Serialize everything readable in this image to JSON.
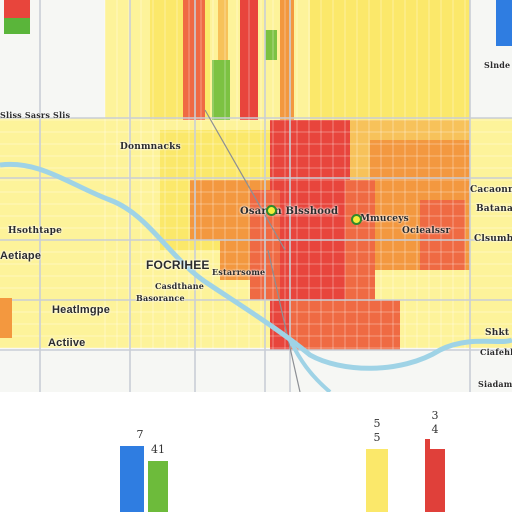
{
  "map": {
    "labels": {
      "district_north": "Donmnacks",
      "city_center": "Osarun Blsshood",
      "east_district": "Mmuceys",
      "south_district": "Ociealssr",
      "east_1": "Cacaonne",
      "east_2": "Batanatnd",
      "east_3": "Clsumbalet",
      "west_1": "Hsothtape",
      "west_2": "Aetiape",
      "west_3": "Heatlmgpe",
      "west_4": "Actiive",
      "title": "FOCRIHEE",
      "sub_1": "Estarrsome",
      "sub_2": "Casdthane",
      "sub_3": "Basorance",
      "se_1": "Shkt",
      "se_2": "Ciafehhee",
      "se_3": "Siadamee",
      "top_strip": "Sliss Sasrs Slis",
      "tr_1": "Slnde"
    },
    "colors": {
      "red": "#e8453c",
      "red_orange": "#ef6a43",
      "orange": "#f3983f",
      "light_orange": "#f7c25a",
      "yellow": "#fbe86a",
      "pale_yellow": "#fdf39a",
      "green": "#7cc242",
      "blue": "#2f7de1",
      "river": "#9fd3e6",
      "street": "#c9ced6"
    }
  },
  "legend": {
    "bars": [
      {
        "label": "7",
        "color": "#2f7de1",
        "value": 1.0
      },
      {
        "label": "41",
        "color": "#6dbb3b",
        "value": 0.78
      },
      {
        "label": "5\n5",
        "color": "#fbe86a",
        "value": 0.95
      },
      {
        "label": "3\n4",
        "color": "#e0403a",
        "value": 0.95
      }
    ]
  }
}
